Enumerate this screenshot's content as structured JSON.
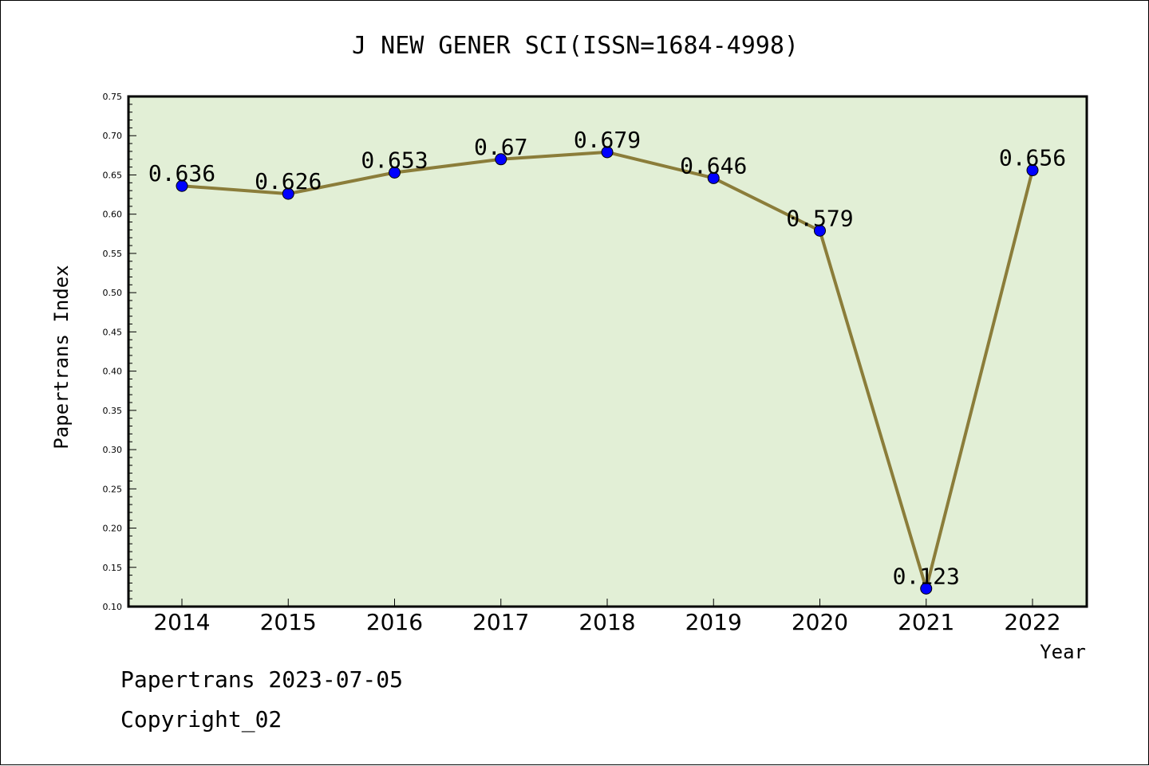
{
  "chart_data": {
    "type": "line",
    "title": "J NEW GENER SCI(ISSN=1684-4998)",
    "xlabel": "Year",
    "ylabel": "Papertrans Index",
    "categories": [
      "2014",
      "2015",
      "2016",
      "2017",
      "2018",
      "2019",
      "2020",
      "2021",
      "2022"
    ],
    "series": [
      {
        "values": [
          0.636,
          0.626,
          0.653,
          0.67,
          0.679,
          0.646,
          0.579,
          0.123,
          0.656
        ]
      }
    ],
    "data_labels": [
      "0.636",
      "0.626",
      "0.653",
      "0.67",
      "0.679",
      "0.646",
      "0.579",
      "0.123",
      "0.656"
    ],
    "ylim": [
      0.1,
      0.75
    ],
    "y_ticks": [
      "0.10",
      "0.15",
      "0.20",
      "0.25",
      "0.30",
      "0.35",
      "0.40",
      "0.45",
      "0.50",
      "0.55",
      "0.60",
      "0.65",
      "0.70",
      "0.75"
    ],
    "grid": false,
    "legend": "none",
    "colors": {
      "plot_background": "#e2efd6",
      "line": "#8b7d3a",
      "marker": "#0000ff"
    }
  },
  "footer": {
    "line1": "Papertrans 2023-07-05",
    "line2": "Copyright_02"
  }
}
